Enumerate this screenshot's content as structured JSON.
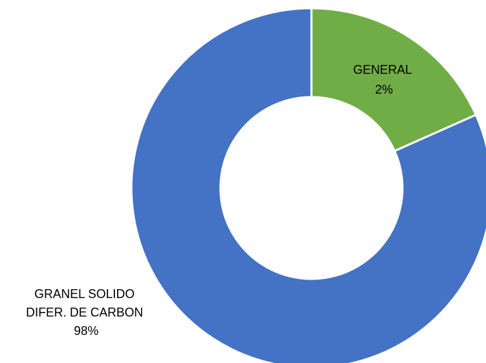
{
  "chart_data": {
    "type": "pie",
    "style": "donut",
    "title": "",
    "slices": [
      {
        "label_lines": [
          "GENERAL",
          "2%"
        ],
        "category": "GENERAL",
        "printed_percent": "2%",
        "value": 2,
        "color": "#70ad47"
      },
      {
        "label_lines": [
          "GRANEL SOLIDO",
          "DIFER. DE CARBON",
          "98%"
        ],
        "category": "GRANEL SOLIDO DIFER. DE CARBON",
        "printed_percent": "98%",
        "value": 98,
        "color": "#4472c4"
      }
    ],
    "legend": "none",
    "border_color": "#ffffff"
  }
}
